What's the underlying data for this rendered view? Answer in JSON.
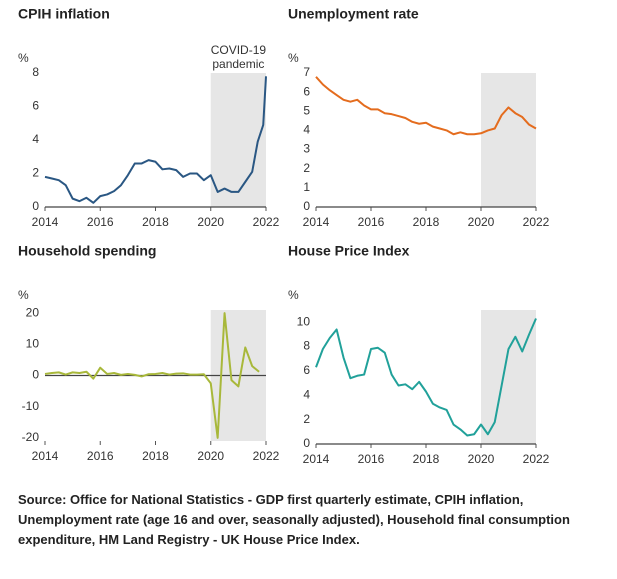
{
  "chart_data": [
    {
      "type": "line",
      "title": "CPIH inflation",
      "y_label": "%",
      "annotation": [
        "COVID-19",
        "pandemic"
      ],
      "highlight": [
        2020,
        2022
      ],
      "xlim": [
        2014,
        2022
      ],
      "xticks": [
        2014,
        2016,
        2018,
        2020,
        2022
      ],
      "ylim": [
        0,
        8
      ],
      "yticks": [
        0,
        2,
        4,
        6,
        8
      ],
      "series": [
        {
          "color": "#2a5783",
          "x": [
            2014,
            2014.25,
            2014.5,
            2014.75,
            2015,
            2015.25,
            2015.5,
            2015.75,
            2016,
            2016.25,
            2016.5,
            2016.75,
            2017,
            2017.25,
            2017.5,
            2017.75,
            2018,
            2018.25,
            2018.5,
            2018.75,
            2019,
            2019.25,
            2019.5,
            2019.75,
            2020,
            2020.25,
            2020.5,
            2020.75,
            2021,
            2021.25,
            2021.5,
            2021.7,
            2021.9,
            2022
          ],
          "values": [
            1.8,
            1.7,
            1.6,
            1.3,
            0.5,
            0.35,
            0.55,
            0.25,
            0.65,
            0.75,
            0.95,
            1.3,
            1.9,
            2.6,
            2.6,
            2.8,
            2.7,
            2.25,
            2.3,
            2.2,
            1.8,
            2.0,
            2.0,
            1.6,
            1.9,
            0.9,
            1.1,
            0.9,
            0.9,
            1.5,
            2.1,
            3.9,
            4.9,
            7.8
          ]
        }
      ]
    },
    {
      "type": "line",
      "title": "Unemployment rate",
      "y_label": "%",
      "highlight": [
        2020,
        2022
      ],
      "xlim": [
        2014,
        2022
      ],
      "xticks": [
        2014,
        2016,
        2018,
        2020,
        2022
      ],
      "ylim": [
        0,
        7
      ],
      "yticks": [
        0,
        1,
        2,
        3,
        4,
        5,
        6,
        7
      ],
      "series": [
        {
          "color": "#e46c1e",
          "x": [
            2014,
            2014.25,
            2014.5,
            2014.75,
            2015,
            2015.25,
            2015.5,
            2015.75,
            2016,
            2016.25,
            2016.5,
            2016.75,
            2017,
            2017.25,
            2017.5,
            2017.75,
            2018,
            2018.25,
            2018.5,
            2018.75,
            2019,
            2019.25,
            2019.5,
            2019.75,
            2020,
            2020.25,
            2020.5,
            2020.75,
            2021,
            2021.25,
            2021.5,
            2021.75,
            2022
          ],
          "values": [
            6.8,
            6.4,
            6.1,
            5.85,
            5.6,
            5.5,
            5.6,
            5.3,
            5.1,
            5.1,
            4.9,
            4.85,
            4.75,
            4.65,
            4.45,
            4.35,
            4.4,
            4.2,
            4.1,
            4.0,
            3.8,
            3.9,
            3.8,
            3.8,
            3.85,
            4.0,
            4.1,
            4.8,
            5.2,
            4.9,
            4.7,
            4.3,
            4.1
          ]
        }
      ]
    },
    {
      "type": "line",
      "title": "Household spending",
      "y_label": "%",
      "highlight": [
        2020,
        2022
      ],
      "xlim": [
        2014,
        2022
      ],
      "xticks": [
        2014,
        2016,
        2018,
        2020,
        2022
      ],
      "ylim": [
        -21,
        21
      ],
      "yticks": [
        -20,
        -10,
        0,
        10,
        20
      ],
      "series": [
        {
          "color": "#a8b83a",
          "x": [
            2014,
            2014.25,
            2014.5,
            2014.75,
            2015,
            2015.25,
            2015.5,
            2015.75,
            2016,
            2016.25,
            2016.5,
            2016.75,
            2017,
            2017.25,
            2017.5,
            2017.75,
            2018,
            2018.25,
            2018.5,
            2018.75,
            2019,
            2019.25,
            2019.5,
            2019.75,
            2020,
            2020.25,
            2020.5,
            2020.75,
            2021,
            2021.25,
            2021.5,
            2021.75
          ],
          "values": [
            0.5,
            0.8,
            1,
            0.3,
            1,
            0.8,
            1.2,
            -1,
            2.5,
            0.5,
            0.8,
            0.2,
            0.5,
            0.2,
            -0.3,
            0.4,
            0.5,
            0.8,
            0.3,
            0.6,
            0.7,
            0.3,
            0.3,
            0.4,
            -2.5,
            -20,
            20,
            -1.5,
            -3.5,
            9,
            3,
            1.2
          ]
        }
      ]
    },
    {
      "type": "line",
      "title": "House Price Index",
      "y_label": "%",
      "highlight": [
        2020,
        2022
      ],
      "xlim": [
        2014,
        2022
      ],
      "xticks": [
        2014,
        2016,
        2018,
        2020,
        2022
      ],
      "ylim": [
        0,
        11
      ],
      "yticks": [
        0,
        2,
        4,
        6,
        8,
        10
      ],
      "series": [
        {
          "color": "#21a19a",
          "x": [
            2014,
            2014.25,
            2014.5,
            2014.75,
            2015,
            2015.25,
            2015.5,
            2015.75,
            2016,
            2016.25,
            2016.5,
            2016.75,
            2017,
            2017.25,
            2017.5,
            2017.75,
            2018,
            2018.25,
            2018.5,
            2018.75,
            2019,
            2019.25,
            2019.5,
            2019.75,
            2020,
            2020.25,
            2020.5,
            2020.75,
            2021,
            2021.25,
            2021.5,
            2021.75,
            2022
          ],
          "values": [
            6.3,
            7.8,
            8.7,
            9.4,
            7.1,
            5.4,
            5.6,
            5.7,
            7.8,
            7.9,
            7.5,
            5.7,
            4.8,
            4.9,
            4.5,
            5.1,
            4.3,
            3.3,
            3.0,
            2.8,
            1.6,
            1.2,
            0.7,
            0.8,
            1.6,
            0.8,
            1.8,
            4.8,
            7.8,
            8.8,
            7.6,
            9.0,
            10.3
          ]
        }
      ]
    }
  ],
  "source": "Source: Office for National Statistics - GDP first quarterly estimate, CPIH inflation, Unemployment rate (age 16 and over, seasonally adjusted), Household final consumption expenditure, HM Land Registry - UK House Price Index."
}
